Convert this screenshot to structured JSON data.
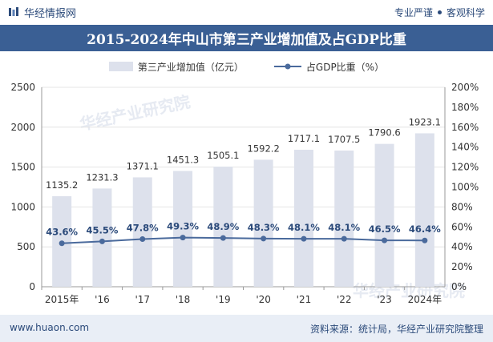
{
  "header": {
    "brand": "华经情报网",
    "slogan_left": "专业严谨",
    "slogan_right": "客观科学"
  },
  "title": "2015-2024年中山市第三产业增加值及占GDP比重",
  "colors": {
    "bar": "#dde1ec",
    "line": "#4a6a9c",
    "title_bg": "#3a5f94",
    "footer_bg": "#e9eef6"
  },
  "chart_data": {
    "type": "bar",
    "categories": [
      "2015年",
      "'16",
      "'17",
      "'18",
      "'19",
      "'20",
      "'21",
      "'22",
      "'23",
      "2024年"
    ],
    "series": [
      {
        "name": "第三产业增加值（亿元）",
        "type": "bar",
        "axis": "left",
        "values": [
          1135.2,
          1231.3,
          1371.1,
          1451.3,
          1505.1,
          1592.2,
          1717.1,
          1707.5,
          1790.6,
          1923.1
        ],
        "labels": [
          "1135.2",
          "1231.3",
          "1371.1",
          "1451.3",
          "1505.1",
          "1592.2",
          "1717.1",
          "1707.5",
          "1790.6",
          "1923.1"
        ]
      },
      {
        "name": "占GDP比重（%）",
        "type": "line",
        "axis": "right",
        "values": [
          43.6,
          45.5,
          47.8,
          49.3,
          48.9,
          48.3,
          48.1,
          48.1,
          46.5,
          46.4
        ],
        "labels": [
          "43.6%",
          "45.5%",
          "47.8%",
          "49.3%",
          "48.9%",
          "48.3%",
          "48.1%",
          "48.1%",
          "46.5%",
          "46.4%"
        ]
      }
    ],
    "y_left": {
      "min": 0,
      "max": 2500,
      "ticks": [
        "0",
        "500",
        "1000",
        "1500",
        "2000",
        "2500"
      ]
    },
    "y_right": {
      "min": 0,
      "max": 200,
      "ticks": [
        "0%",
        "20%",
        "40%",
        "60%",
        "80%",
        "100%",
        "120%",
        "140%",
        "160%",
        "180%",
        "200%"
      ]
    },
    "grid": true,
    "legend_position": "top-center"
  },
  "watermarks": [
    "华经产业研究院",
    "华经产业研究院"
  ],
  "footer": {
    "site": "www.huaon.com",
    "source": "资料来源：统计局，华经产业研究院整理"
  }
}
